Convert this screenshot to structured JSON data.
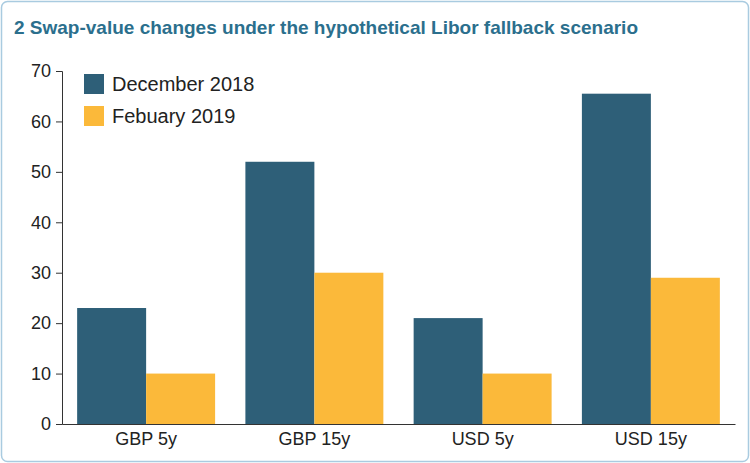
{
  "chart_data": {
    "type": "bar",
    "title": "2 Swap-value changes under the hypothetical Libor fallback scenario",
    "categories": [
      "GBP 5y",
      "GBP 15y",
      "USD 5y",
      "USD 15y"
    ],
    "series": [
      {
        "name": "December 2018",
        "color": "#2e5f78",
        "values": [
          23,
          52,
          21,
          65.5
        ]
      },
      {
        "name": "Febuary 2019",
        "color": "#fbb93a",
        "values": [
          10,
          30,
          10,
          29
        ]
      }
    ],
    "ylim": [
      0,
      70
    ],
    "yticks": [
      0,
      10,
      20,
      30,
      40,
      50,
      60,
      70
    ],
    "grid": false,
    "legend": "upper left"
  }
}
